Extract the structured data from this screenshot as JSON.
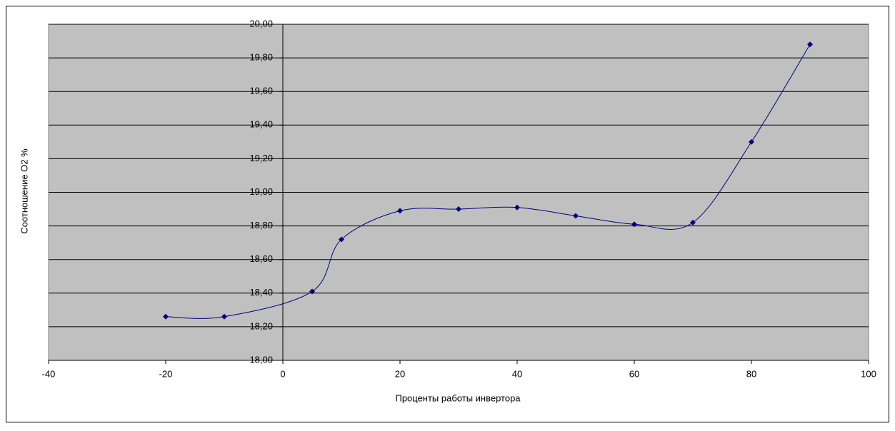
{
  "chart_data": {
    "type": "scatter-smooth",
    "x_label": "Проценты работы инвертора",
    "y_label": "Соотношение O2 %",
    "x": [
      -20,
      -10,
      5,
      10,
      20,
      30,
      40,
      50,
      60,
      70,
      80,
      90
    ],
    "values": [
      18.26,
      18.26,
      18.41,
      18.72,
      18.89,
      18.9,
      18.91,
      18.86,
      18.81,
      18.82,
      19.3,
      19.88
    ],
    "color": "#000080",
    "xlim": [
      -40,
      100
    ],
    "xticks": [
      -40,
      -20,
      0,
      20,
      40,
      60,
      80,
      100
    ],
    "ylim": [
      18,
      20
    ],
    "yticks": [
      {
        "value": 18,
        "label": "18,00"
      },
      {
        "value": 18.2,
        "label": "18,20"
      },
      {
        "value": 18.4,
        "label": "18,40"
      },
      {
        "value": 18.6,
        "label": "18,60"
      },
      {
        "value": 18.8,
        "label": "18,80"
      },
      {
        "value": 19,
        "label": "19,00"
      },
      {
        "value": 19.2,
        "label": "19,20"
      },
      {
        "value": 19.4,
        "label": "19,40"
      },
      {
        "value": 19.6,
        "label": "19,60"
      },
      {
        "value": 19.8,
        "label": "19,80"
      },
      {
        "value": 20,
        "label": "20,00"
      }
    ],
    "grid": true,
    "plot_background": "#c0c0c0"
  }
}
